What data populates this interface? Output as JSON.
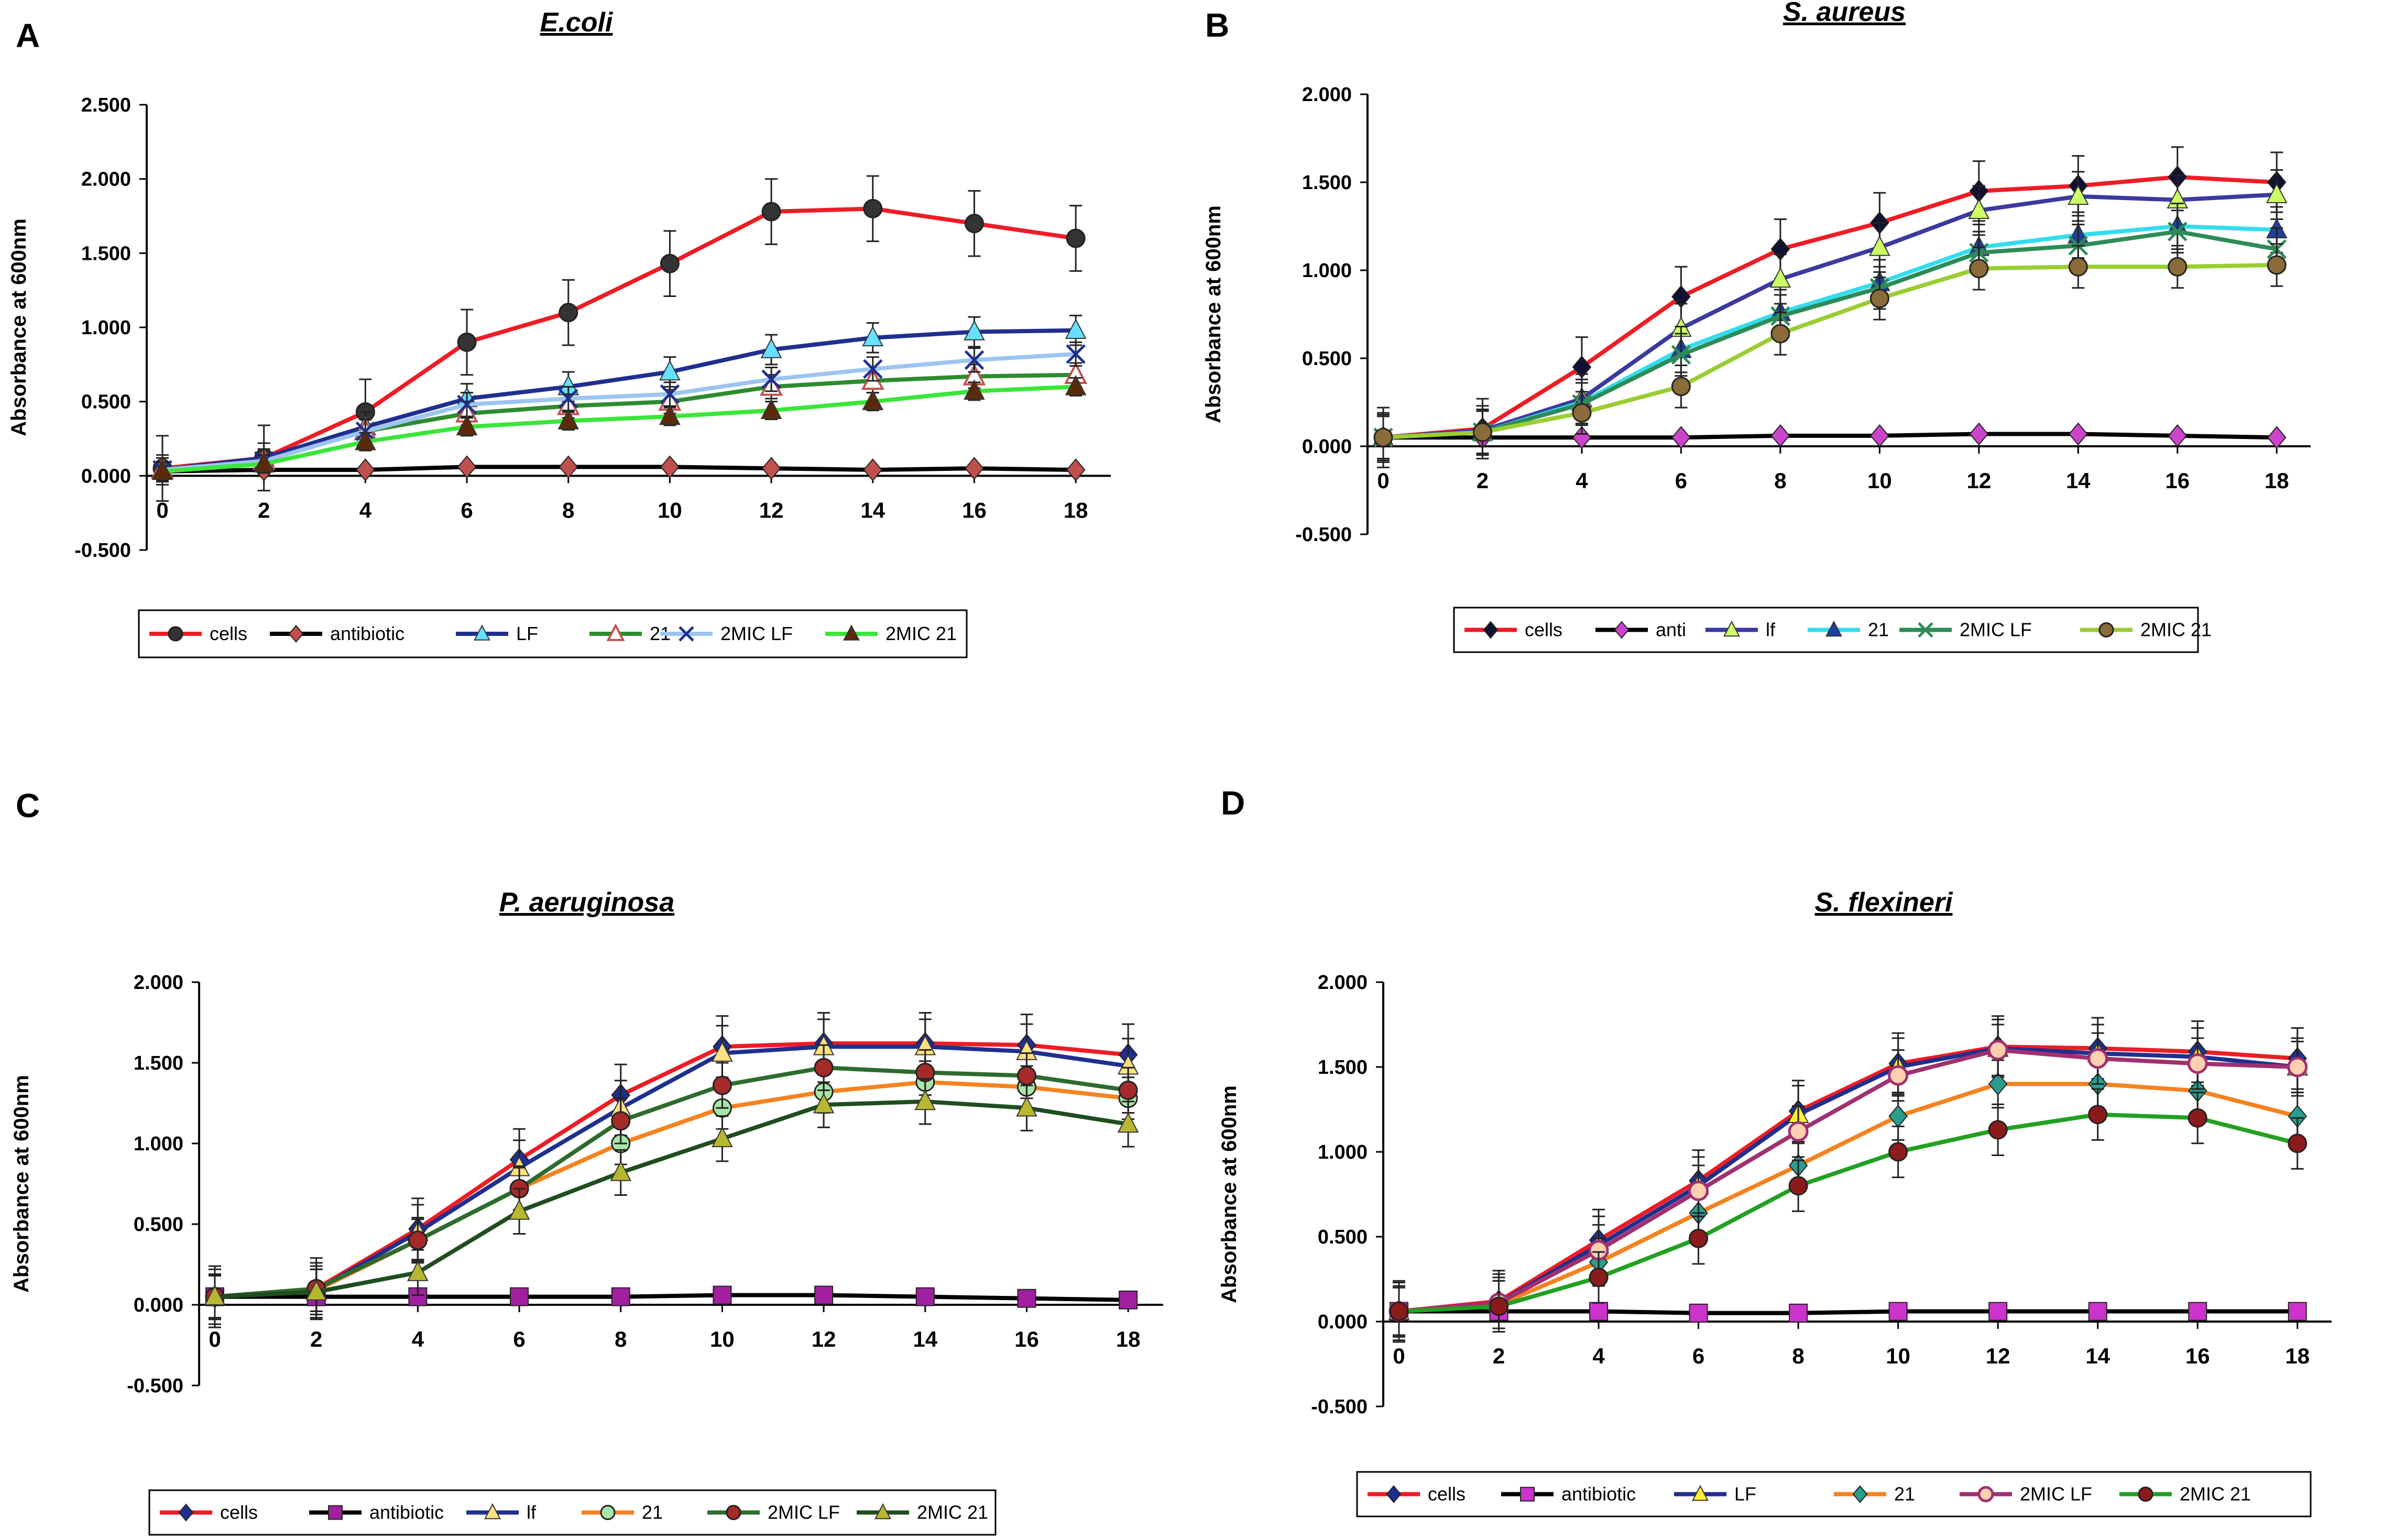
{
  "chart_data": [
    {
      "panel": "A",
      "type": "line",
      "title": "E.coli",
      "xlabel": "",
      "ylabel": "Absorbance at 600nm",
      "x": [
        0,
        2,
        4,
        6,
        8,
        10,
        12,
        14,
        16,
        18
      ],
      "ylim": [
        -0.5,
        2.5
      ],
      "yticks": [
        "2.500",
        "2.000",
        "1.500",
        "1.000",
        "0.500",
        "0.000",
        "-0.500"
      ],
      "legend": "bottom",
      "series": [
        {
          "name": "cells",
          "color": "#ee1c25",
          "marker": "circle",
          "markerColor": "#333333",
          "err": 0.22,
          "values": [
            0.05,
            0.12,
            0.43,
            0.9,
            1.1,
            1.43,
            1.78,
            1.8,
            1.7,
            1.6
          ]
        },
        {
          "name": "antibiotic",
          "color": "#000000",
          "marker": "diamond",
          "markerColor": "#c0504d",
          "err": 0,
          "values": [
            0.03,
            0.04,
            0.04,
            0.06,
            0.06,
            0.06,
            0.05,
            0.04,
            0.05,
            0.04
          ]
        },
        {
          "name": "LF",
          "color": "#1f2f8f",
          "marker": "triangle",
          "markerColor": "#66e0ff",
          "err": 0.1,
          "values": [
            0.04,
            0.12,
            0.33,
            0.52,
            0.6,
            0.7,
            0.85,
            0.93,
            0.97,
            0.98
          ]
        },
        {
          "name": "21",
          "color": "#2e8b2e",
          "marker": "triangle-open",
          "markerColor": "#c0504d",
          "err": 0.08,
          "values": [
            0.04,
            0.1,
            0.3,
            0.42,
            0.47,
            0.5,
            0.6,
            0.64,
            0.67,
            0.68
          ]
        },
        {
          "name": "2MIC LF",
          "color": "#9ec5f0",
          "marker": "x",
          "markerColor": "#1f2f8f",
          "err": 0.08,
          "values": [
            0.04,
            0.1,
            0.3,
            0.48,
            0.52,
            0.55,
            0.65,
            0.72,
            0.78,
            0.82
          ]
        },
        {
          "name": "2MIC 21",
          "color": "#39e639",
          "marker": "triangle",
          "markerColor": "#5a2a0a",
          "err": 0.06,
          "values": [
            0.03,
            0.08,
            0.23,
            0.33,
            0.37,
            0.4,
            0.44,
            0.5,
            0.57,
            0.6
          ]
        }
      ]
    },
    {
      "panel": "B",
      "type": "line",
      "title": "S. aureus",
      "xlabel": "",
      "ylabel": "Absorbance at 600nm",
      "x": [
        0,
        2,
        4,
        6,
        8,
        10,
        12,
        14,
        16,
        18
      ],
      "ylim": [
        -0.5,
        2.0
      ],
      "yticks": [
        "2.000",
        "1.500",
        "1.000",
        "0.500",
        "0.000",
        "-0.500"
      ],
      "legend": "bottom",
      "series": [
        {
          "name": "cells",
          "color": "#ee1c25",
          "marker": "diamond",
          "markerColor": "#111133",
          "err": 0.17,
          "values": [
            0.05,
            0.1,
            0.45,
            0.85,
            1.12,
            1.27,
            1.45,
            1.48,
            1.53,
            1.5
          ]
        },
        {
          "name": "anti",
          "color": "#000000",
          "marker": "diamond",
          "markerColor": "#cc44cc",
          "err": 0,
          "values": [
            0.05,
            0.05,
            0.05,
            0.05,
            0.06,
            0.06,
            0.07,
            0.07,
            0.06,
            0.05
          ]
        },
        {
          "name": "lf",
          "color": "#3a3a9f",
          "marker": "triangle",
          "markerColor": "#ccff66",
          "err": 0.14,
          "values": [
            0.05,
            0.09,
            0.27,
            0.67,
            0.95,
            1.13,
            1.34,
            1.42,
            1.4,
            1.43
          ]
        },
        {
          "name": "21",
          "color": "#33ddee",
          "marker": "triangle",
          "markerColor": "#1f3f9f",
          "err": 0.13,
          "values": [
            0.05,
            0.08,
            0.25,
            0.55,
            0.76,
            0.93,
            1.13,
            1.2,
            1.25,
            1.23
          ]
        },
        {
          "name": "2MIC LF",
          "color": "#2e8b57",
          "marker": "x",
          "markerColor": "#2e8b57",
          "err": 0.12,
          "values": [
            0.05,
            0.08,
            0.24,
            0.52,
            0.74,
            0.9,
            1.1,
            1.14,
            1.22,
            1.12
          ]
        },
        {
          "name": "2MIC 21",
          "color": "#9acd32",
          "marker": "circle",
          "markerColor": "#8b6b3a",
          "err": 0.12,
          "values": [
            0.05,
            0.08,
            0.19,
            0.34,
            0.64,
            0.84,
            1.01,
            1.02,
            1.02,
            1.03
          ]
        }
      ]
    },
    {
      "panel": "C",
      "type": "line",
      "title": "P. aeruginosa",
      "xlabel": "",
      "ylabel": "Absorbance at 600nm",
      "x": [
        0,
        2,
        4,
        6,
        8,
        10,
        12,
        14,
        16,
        18
      ],
      "ylim": [
        -0.5,
        2.0
      ],
      "yticks": [
        "2.000",
        "1.500",
        "1.000",
        "0.500",
        "0.000",
        "-0.500"
      ],
      "legend": "bottom",
      "series": [
        {
          "name": "cells",
          "color": "#ee1c25",
          "marker": "diamond",
          "markerColor": "#1f2f8f",
          "err": 0.19,
          "values": [
            0.05,
            0.1,
            0.47,
            0.9,
            1.3,
            1.6,
            1.62,
            1.62,
            1.61,
            1.55
          ]
        },
        {
          "name": "antibiotic",
          "color": "#000000",
          "marker": "square",
          "markerColor": "#a020a0",
          "err": 0,
          "values": [
            0.05,
            0.05,
            0.05,
            0.05,
            0.05,
            0.06,
            0.06,
            0.05,
            0.04,
            0.03
          ]
        },
        {
          "name": "lf",
          "color": "#1f2f8f",
          "marker": "triangle",
          "markerColor": "#ffe080",
          "err": 0.17,
          "values": [
            0.05,
            0.09,
            0.45,
            0.85,
            1.22,
            1.56,
            1.6,
            1.6,
            1.57,
            1.48
          ]
        },
        {
          "name": "21",
          "color": "#f58220",
          "marker": "circle",
          "markerColor": "#a8e6a8",
          "err": 0.13,
          "values": [
            0.05,
            0.09,
            0.4,
            0.72,
            1.0,
            1.22,
            1.32,
            1.38,
            1.35,
            1.28
          ]
        },
        {
          "name": "2MIC LF",
          "color": "#2e6b2e",
          "marker": "circle",
          "markerColor": "#a52a2a",
          "err": 0.14,
          "values": [
            0.05,
            0.1,
            0.4,
            0.72,
            1.14,
            1.36,
            1.47,
            1.44,
            1.42,
            1.33
          ]
        },
        {
          "name": "2MIC 21",
          "color": "#1f4d1f",
          "marker": "triangle",
          "markerColor": "#b8b830",
          "err": 0.14,
          "values": [
            0.05,
            0.08,
            0.2,
            0.58,
            0.82,
            1.03,
            1.24,
            1.26,
            1.22,
            1.12
          ]
        }
      ]
    },
    {
      "panel": "D",
      "type": "line",
      "title": "S. flexineri",
      "xlabel": "",
      "ylabel": "Absorbance at 600nm",
      "x": [
        0,
        2,
        4,
        6,
        8,
        10,
        12,
        14,
        16,
        18
      ],
      "ylim": [
        -0.5,
        2.0
      ],
      "yticks": [
        "2.000",
        "1.500",
        "1.000",
        "0.500",
        "0.000",
        "-0.500"
      ],
      "legend": "bottom",
      "series": [
        {
          "name": "cells",
          "color": "#ee1c25",
          "marker": "diamond",
          "markerColor": "#1f2f8f",
          "err": 0.18,
          "values": [
            0.06,
            0.12,
            0.48,
            0.83,
            1.24,
            1.52,
            1.62,
            1.61,
            1.59,
            1.55
          ]
        },
        {
          "name": "antibiotic",
          "color": "#000000",
          "marker": "square",
          "markerColor": "#cc33cc",
          "err": 0,
          "values": [
            0.06,
            0.06,
            0.06,
            0.05,
            0.05,
            0.06,
            0.06,
            0.06,
            0.06,
            0.06
          ]
        },
        {
          "name": "LF",
          "color": "#1f2f8f",
          "marker": "triangle",
          "markerColor": "#ffee33",
          "err": 0.17,
          "values": [
            0.06,
            0.11,
            0.45,
            0.8,
            1.22,
            1.5,
            1.61,
            1.58,
            1.56,
            1.5
          ]
        },
        {
          "name": "21",
          "color": "#f58220",
          "marker": "diamond",
          "markerColor": "#2a9d8f",
          "err": 0.14,
          "values": [
            0.06,
            0.1,
            0.35,
            0.64,
            0.92,
            1.21,
            1.4,
            1.4,
            1.36,
            1.21
          ]
        },
        {
          "name": "2MIC LF",
          "color": "#a03070",
          "marker": "circle-open",
          "markerColor": "#ffd0b0",
          "err": 0.15,
          "values": [
            0.06,
            0.11,
            0.42,
            0.77,
            1.12,
            1.45,
            1.6,
            1.55,
            1.52,
            1.5
          ]
        },
        {
          "name": "2MIC 21",
          "color": "#22a022",
          "marker": "circle",
          "markerColor": "#8b1a1a",
          "err": 0.15,
          "values": [
            0.06,
            0.09,
            0.26,
            0.49,
            0.8,
            1.0,
            1.13,
            1.22,
            1.2,
            1.05
          ]
        }
      ]
    }
  ]
}
